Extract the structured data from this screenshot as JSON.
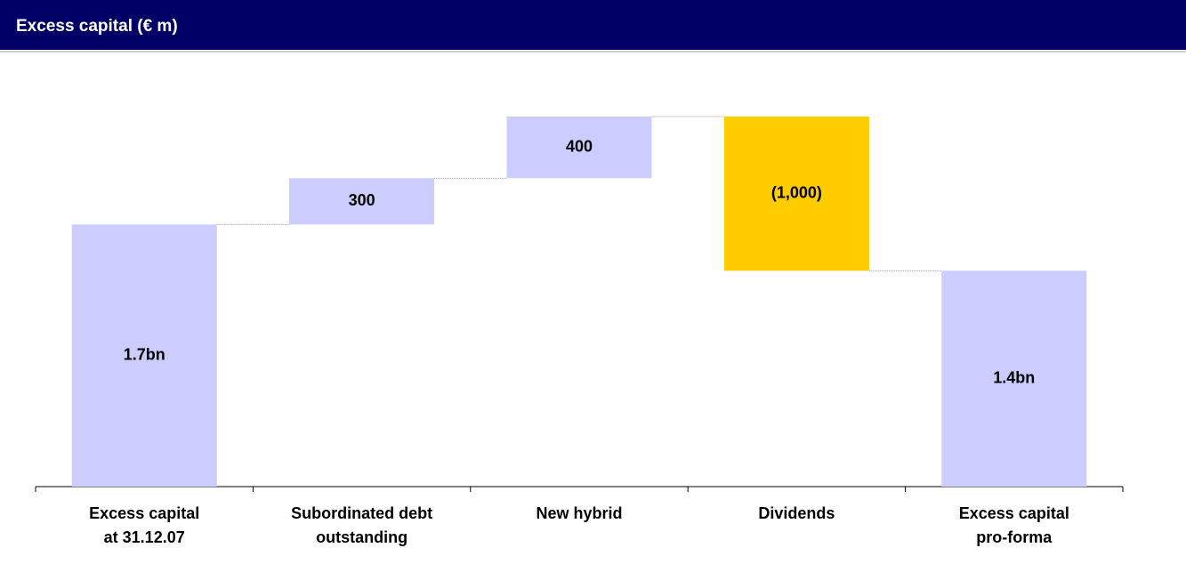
{
  "chart_data": {
    "type": "waterfall",
    "title": "Excess capital (€ m)",
    "categories": [
      [
        "Excess capital",
        "at 31.12.07"
      ],
      [
        "Subordinated debt",
        "outstanding"
      ],
      [
        "New hybrid"
      ],
      [
        "Dividends"
      ],
      [
        "Excess capital",
        "pro-forma"
      ]
    ],
    "values": [
      1700,
      300,
      400,
      -1000,
      1400
    ],
    "value_labels": [
      "1.7bn",
      "300",
      "400",
      "(1,000)",
      "1.4bn"
    ],
    "measure": [
      "absolute",
      "relative",
      "relative",
      "relative",
      "absolute"
    ],
    "colors": [
      "#ccccff",
      "#ccccff",
      "#ccccff",
      "#ffcc00",
      "#ccccff"
    ]
  }
}
